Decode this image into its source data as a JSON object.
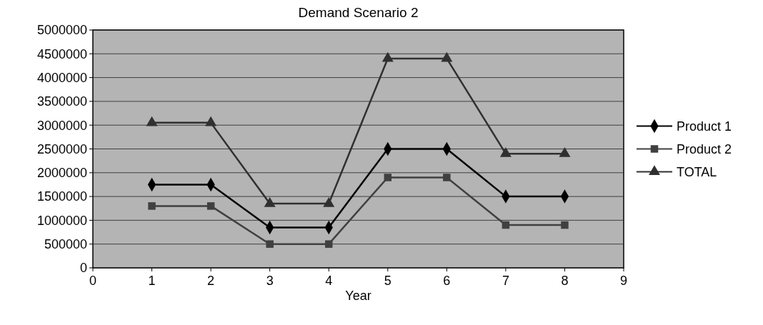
{
  "chart_data": {
    "type": "line",
    "title": "Demand Scenario 2",
    "xlabel": "Year",
    "x": [
      1,
      2,
      3,
      4,
      5,
      6,
      7,
      8
    ],
    "series": [
      {
        "name": "Product 1",
        "color": "#000000",
        "marker": "diamond",
        "values": [
          1750000,
          1750000,
          850000,
          850000,
          2500000,
          2500000,
          1500000,
          1500000
        ]
      },
      {
        "name": "Product 2",
        "color": "#404040",
        "marker": "square",
        "values": [
          1300000,
          1300000,
          500000,
          500000,
          1900000,
          1900000,
          900000,
          900000
        ]
      },
      {
        "name": "TOTAL",
        "color": "#303030",
        "marker": "triangle",
        "values": [
          3050000,
          3050000,
          1350000,
          1350000,
          4400000,
          4400000,
          2400000,
          2400000
        ]
      }
    ],
    "xlim": [
      0,
      9
    ],
    "xticks": [
      0,
      1,
      2,
      3,
      4,
      5,
      6,
      7,
      8,
      9
    ],
    "ylim": [
      0,
      5000000
    ],
    "yticks": [
      0,
      500000,
      1000000,
      1500000,
      2000000,
      2500000,
      3000000,
      3500000,
      4000000,
      4500000,
      5000000
    ],
    "grid": "y",
    "legend": "right"
  }
}
